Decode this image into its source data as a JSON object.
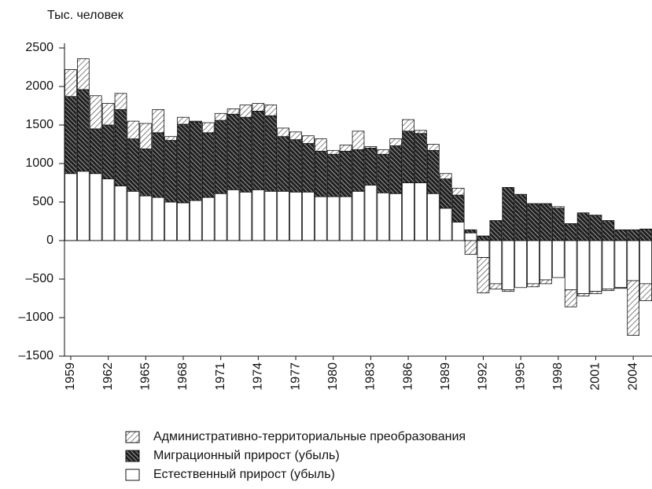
{
  "chart_data": {
    "type": "stacked-bar",
    "y_label": "Тыс. человек",
    "categories": [
      "1959",
      null,
      null,
      "1962",
      null,
      null,
      "1965",
      null,
      null,
      "1968",
      null,
      null,
      "1971",
      null,
      null,
      "1974",
      null,
      null,
      "1977",
      null,
      null,
      "1980",
      null,
      null,
      "1983",
      null,
      null,
      "1986",
      null,
      null,
      "1989",
      null,
      null,
      "1992",
      null,
      null,
      "1995",
      null,
      null,
      "1998",
      null,
      null,
      "2001",
      null,
      null,
      "2004",
      null
    ],
    "series": [
      {
        "name": "Естественный прирост (убыль)",
        "color": "#ffffff",
        "hatch": "none",
        "values": [
          870,
          900,
          870,
          800,
          710,
          640,
          580,
          560,
          500,
          490,
          520,
          560,
          610,
          660,
          630,
          660,
          640,
          640,
          630,
          630,
          570,
          570,
          570,
          640,
          720,
          620,
          610,
          750,
          750,
          610,
          420,
          240,
          100,
          -220,
          -560,
          -640,
          -610,
          -560,
          -510,
          -480,
          -640,
          -690,
          -660,
          -630,
          -610,
          -520,
          -560
        ]
      },
      {
        "name": "Миграционный прирост (убыль)",
        "color": "#222222",
        "hatch": "dense",
        "values": [
          1000,
          1060,
          580,
          700,
          990,
          680,
          610,
          840,
          800,
          1020,
          1020,
          840,
          950,
          980,
          970,
          1020,
          980,
          710,
          680,
          630,
          590,
          550,
          590,
          540,
          480,
          500,
          620,
          670,
          640,
          560,
          380,
          350,
          40,
          60,
          260,
          690,
          600,
          480,
          480,
          420,
          220,
          360,
          330,
          260,
          140,
          140,
          150
        ]
      },
      {
        "name": "Административно-территориальные преобразования",
        "color": "#333333",
        "hatch": "light",
        "values": [
          350,
          400,
          430,
          280,
          210,
          230,
          330,
          300,
          50,
          90,
          10,
          130,
          90,
          70,
          160,
          100,
          140,
          110,
          100,
          100,
          160,
          50,
          80,
          240,
          20,
          60,
          90,
          150,
          40,
          80,
          70,
          90,
          -180,
          -460,
          -70,
          -20,
          0,
          -40,
          -50,
          20,
          -220,
          -30,
          -30,
          -20,
          -10,
          -710,
          -220
        ]
      }
    ],
    "ylim": [
      -1500,
      2500
    ],
    "yticks": [
      {
        "value": -1500,
        "label": "–1500"
      },
      {
        "value": -1000,
        "label": "–1000"
      },
      {
        "value": -500,
        "label": "–500"
      },
      0,
      500,
      1000,
      1500,
      2000,
      2500
    ]
  }
}
